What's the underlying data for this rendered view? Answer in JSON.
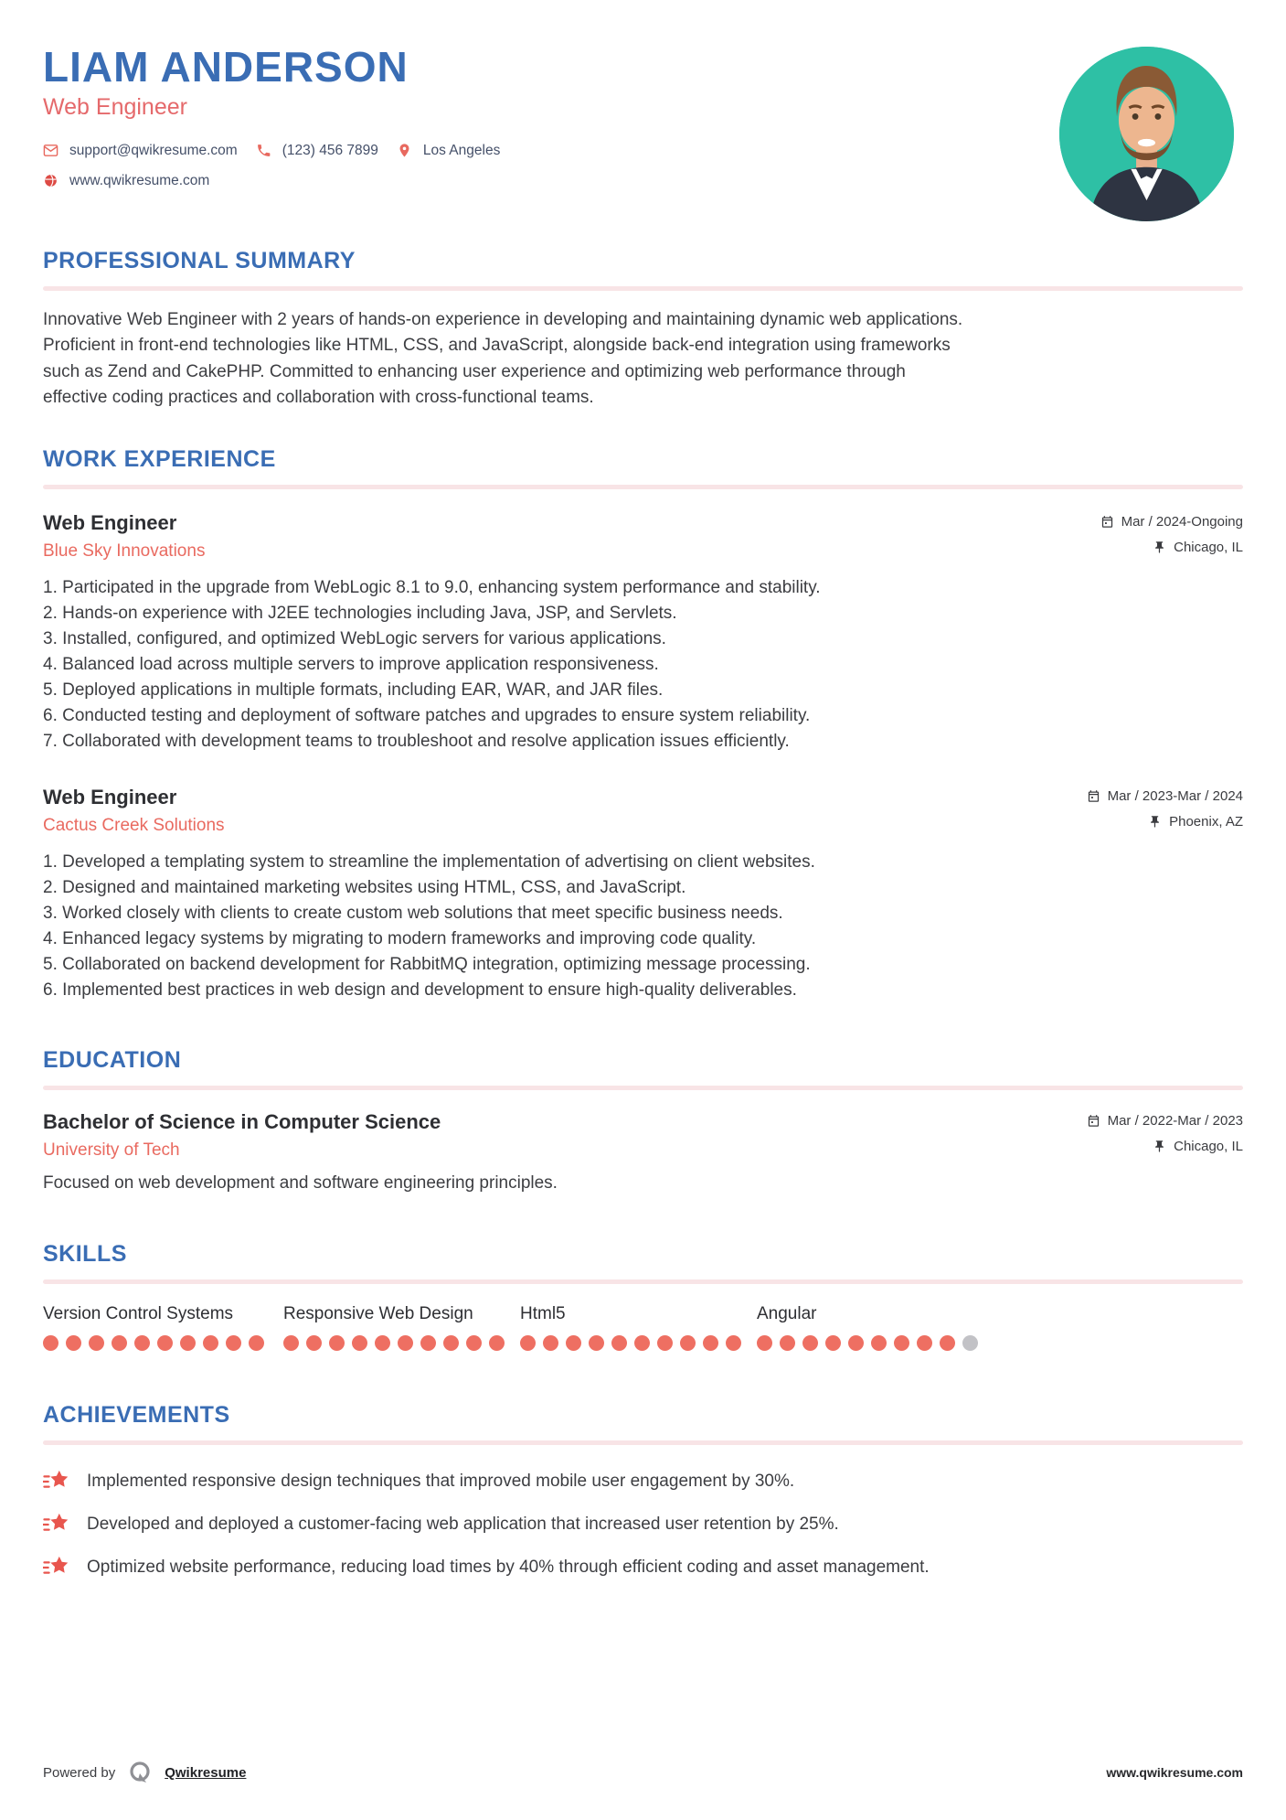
{
  "header": {
    "name": "LIAM ANDERSON",
    "title": "Web Engineer",
    "email": "support@qwikresume.com",
    "phone": "(123) 456 7899",
    "location": "Los Angeles",
    "website": "www.qwikresume.com"
  },
  "summary": {
    "heading": "PROFESSIONAL SUMMARY",
    "text": "Innovative Web Engineer with 2 years of hands-on experience in developing and maintaining dynamic web applications. Proficient in front-end technologies like HTML, CSS, and JavaScript, alongside back-end integration using frameworks such as Zend and CakePHP. Committed to enhancing user experience and optimizing web performance through effective coding practices and collaboration with cross-functional teams."
  },
  "experience": {
    "heading": "WORK EXPERIENCE",
    "jobs": [
      {
        "title": "Web Engineer",
        "company": "Blue Sky Innovations",
        "dates": "Mar / 2024-Ongoing",
        "location": "Chicago, IL",
        "bullets": [
          "Participated in the upgrade from WebLogic 8.1 to 9.0, enhancing system performance and stability.",
          "Hands-on experience with J2EE technologies including Java, JSP, and Servlets.",
          "Installed, configured, and optimized WebLogic servers for various applications.",
          "Balanced load across multiple servers to improve application responsiveness.",
          "Deployed applications in multiple formats, including EAR, WAR, and JAR files.",
          "Conducted testing and deployment of software patches and upgrades to ensure system reliability.",
          "Collaborated with development teams to troubleshoot and resolve application issues efficiently."
        ]
      },
      {
        "title": "Web Engineer",
        "company": "Cactus Creek Solutions",
        "dates": "Mar / 2023-Mar / 2024",
        "location": "Phoenix, AZ",
        "bullets": [
          "Developed a templating system to streamline the implementation of advertising on client websites.",
          "Designed and maintained marketing websites using HTML, CSS, and JavaScript.",
          "Worked closely with clients to create custom web solutions that meet specific business needs.",
          "Enhanced legacy systems by migrating to modern frameworks and improving code quality.",
          "Collaborated on backend development for RabbitMQ integration, optimizing message processing.",
          "Implemented best practices in web design and development to ensure high-quality deliverables."
        ]
      }
    ]
  },
  "education": {
    "heading": "EDUCATION",
    "degree": "Bachelor of Science in Computer Science",
    "school": "University of Tech",
    "dates": "Mar / 2022-Mar / 2023",
    "location": "Chicago, IL",
    "description": "Focused on web development and software engineering principles."
  },
  "skills": {
    "heading": "SKILLS",
    "max_dots": 10,
    "items": [
      {
        "name": "Version Control Systems",
        "rating": 10
      },
      {
        "name": "Responsive Web Design",
        "rating": 10
      },
      {
        "name": "Html5",
        "rating": 10
      },
      {
        "name": "Angular",
        "rating": 9
      }
    ]
  },
  "achievements": {
    "heading": "ACHIEVEMENTS",
    "items": [
      "Implemented responsive design techniques that improved mobile user engagement by 30%.",
      "Developed and deployed a customer-facing web application that increased user retention by 25%.",
      "Optimized website performance, reducing load times by 40% through efficient coding and asset management."
    ]
  },
  "footer": {
    "powered_by": "Powered by",
    "brand": "Qwikresume",
    "website": "www.qwikresume.com"
  },
  "colors": {
    "heading_blue": "#3a6db4",
    "accent_coral": "#e8695f",
    "divider_pink": "#f8e4e6",
    "dot_filled": "#ee6f62",
    "dot_empty": "#c2c2c6",
    "photo_teal": "#2ec0a5"
  }
}
